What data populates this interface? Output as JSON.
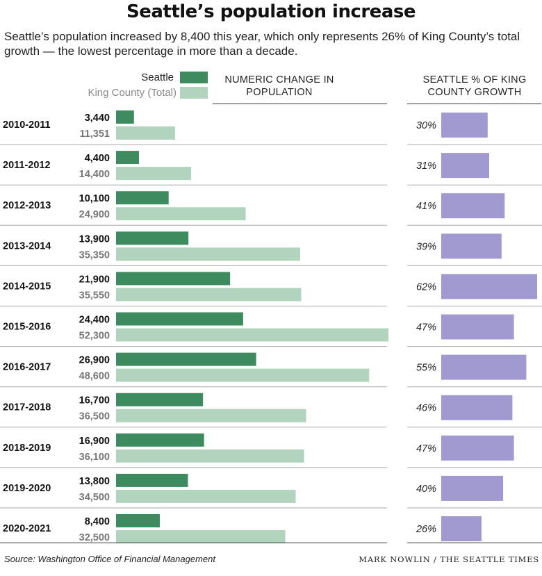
{
  "title": "Seattle’s population increase",
  "subtitle": "Seattle’s population increased by 8,400 this year, which only represents 26% of King County’s total growth — the lowest percentage in more than a decade.",
  "legend": {
    "seattle": "Seattle",
    "king_county": "King County (Total)"
  },
  "column_headers": {
    "change": "NUMERIC CHANGE IN POPULATION",
    "pct": "SEATTLE % OF KING COUNTY GROWTH"
  },
  "colors": {
    "seattle": "#3f8b60",
    "king_county": "#b2d3bd",
    "pct": "#a09ad0",
    "rule": "#aaaaaa",
    "seattle_text": "#111111",
    "king_text": "#777777"
  },
  "chart_data": {
    "type": "bar",
    "categories": [
      "2010-2011",
      "2011-2012",
      "2012-2013",
      "2013-2014",
      "2014-2015",
      "2015-2016",
      "2016-2017",
      "2017-2018",
      "2018-2019",
      "2019-2020",
      "2020-2021"
    ],
    "series": [
      {
        "name": "Seattle",
        "values": [
          3440,
          4400,
          10100,
          13900,
          21900,
          24400,
          26900,
          16700,
          16900,
          13800,
          8400
        ],
        "labels": [
          "3,440",
          "4,400",
          "10,100",
          "13,900",
          "21,900",
          "24,400",
          "26,900",
          "16,700",
          "16,900",
          "13,800",
          "8,400"
        ]
      },
      {
        "name": "King County (Total)",
        "values": [
          11351,
          14400,
          24900,
          35350,
          35550,
          52300,
          48600,
          36500,
          36100,
          34500,
          32500
        ],
        "labels": [
          "11,351",
          "14,400",
          "24,900",
          "35,350",
          "35,550",
          "52,300",
          "48,600",
          "36,500",
          "36,100",
          "34,500",
          "32,500"
        ]
      }
    ],
    "pct_series": {
      "name": "SEATTLE % OF KING COUNTY GROWTH",
      "values": [
        30,
        31,
        41,
        39,
        62,
        47,
        55,
        46,
        47,
        40,
        26
      ],
      "labels": [
        "30%",
        "31%",
        "41%",
        "39%",
        "62%",
        "47%",
        "55%",
        "46%",
        "47%",
        "40%",
        "26%"
      ]
    },
    "xlim": [
      0,
      52300
    ],
    "pct_xlim": [
      0,
      62
    ],
    "grid": false,
    "legend_position": "top"
  },
  "source": "Source: Washington Office of Financial Management",
  "credit": "MARK NOWLIN / THE SEATTLE TIMES"
}
